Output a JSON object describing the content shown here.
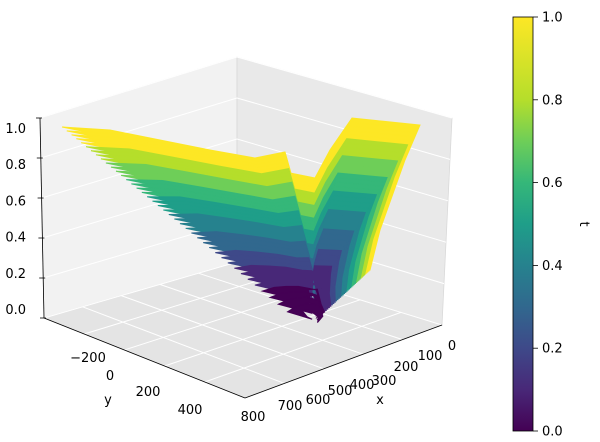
{
  "chart_data": {
    "type": "surface3d",
    "title": "",
    "xlabel": "x",
    "ylabel": "y",
    "zlabel": "",
    "x_ticks": [
      "100",
      "200",
      "300",
      "400",
      "500",
      "600",
      "700",
      "800",
      "0"
    ],
    "y_ticks": [
      "−200",
      "0",
      "200",
      "400"
    ],
    "z_ticks": [
      "0.0",
      "0.2",
      "0.4",
      "0.6",
      "0.8",
      "1.0"
    ],
    "xlim": [
      0,
      800
    ],
    "ylim": [
      -300,
      450
    ],
    "zlim": [
      0,
      1
    ],
    "colormap": "viridis",
    "colorbar": {
      "label": "t",
      "range": [
        0,
        1
      ],
      "ticks": [
        "0.0",
        "0.2",
        "0.4",
        "0.6",
        "0.8",
        "1.0"
      ]
    },
    "grid": true,
    "surface": {
      "description_values": "funnel-shaped front from t=0 near (x≈600, y≈200) rising to t=1 at far corners",
      "t_levels": [
        0,
        0.1,
        0.2,
        0.3,
        0.4,
        0.5,
        0.6,
        0.7,
        0.8,
        0.9,
        1.0
      ]
    },
    "colors": {
      "c0": "#440154",
      "c1": "#482878",
      "c2": "#3e4989",
      "c3": "#31688e",
      "c4": "#26828e",
      "c5": "#1f9e89",
      "c6": "#35b779",
      "c7": "#6ece58",
      "c8": "#b5de2b",
      "c9": "#fde725"
    }
  }
}
